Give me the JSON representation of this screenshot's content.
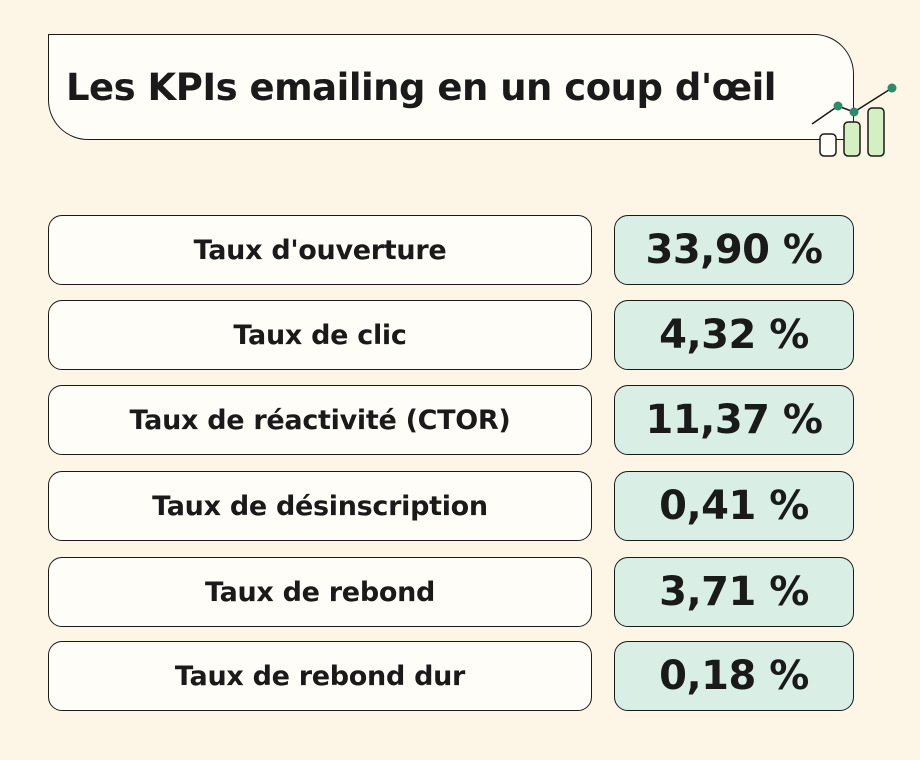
{
  "title": "Les KPIs emailing en un coup d'œil",
  "icon": "bar-chart-growth-icon",
  "colors": {
    "background": "#fdf5e6",
    "card": "#fffdf7",
    "value_fill": "#d9efe6",
    "accent_green": "#2e8b6a",
    "bar_fill": "#d4efc2"
  },
  "kpis": [
    {
      "label": "Taux d'ouverture",
      "value": "33,90 %"
    },
    {
      "label": "Taux de clic",
      "value": "4,32 %"
    },
    {
      "label": "Taux de réactivité (CTOR)",
      "value": "11,37 %"
    },
    {
      "label": "Taux de désinscription",
      "value": "0,41 %"
    },
    {
      "label": "Taux de rebond",
      "value": "3,71 %"
    },
    {
      "label": "Taux de rebond dur",
      "value": "0,18 %"
    }
  ]
}
